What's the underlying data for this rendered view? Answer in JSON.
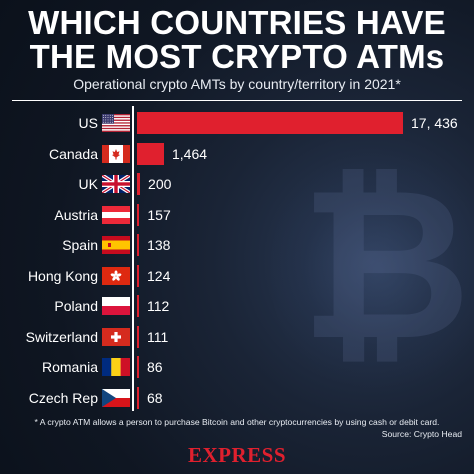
{
  "header": {
    "title_line1": "WHICH COUNTRIES HAVE",
    "title_line2": "THE MOST CRYPTO ATMs",
    "subtitle": "Operational crypto AMTs by country/territory in 2021*"
  },
  "footer": {
    "footnote": "* A crypto ATM allows a person to purchase Bitcoin and other cryptocurrencies by using cash or debit card.",
    "source": "Source: Crypto Head",
    "brand": "EXPRESS"
  },
  "colors": {
    "bar": "#e0202e",
    "background": "#101826",
    "text": "#ffffff"
  },
  "background_glyph": "₿",
  "chart_data": {
    "type": "bar",
    "orientation": "horizontal",
    "title": "WHICH COUNTRIES HAVE THE MOST CRYPTO ATMs",
    "subtitle": "Operational crypto AMTs by country/territory in 2021*",
    "categories": [
      "US",
      "Canada",
      "UK",
      "Austria",
      "Spain",
      "Hong Kong",
      "Poland",
      "Switzerland",
      "Romania",
      "Czech Rep"
    ],
    "values": [
      17436,
      1464,
      200,
      157,
      138,
      124,
      112,
      111,
      86,
      68
    ],
    "value_labels": [
      "17, 436",
      "1,464",
      "200",
      "157",
      "138",
      "124",
      "112",
      "111",
      "86",
      "68"
    ],
    "flags": [
      "us-flag-icon",
      "canada-flag-icon",
      "uk-flag-icon",
      "austria-flag-icon",
      "spain-flag-icon",
      "hong-kong-flag-icon",
      "poland-flag-icon",
      "switzerland-flag-icon",
      "romania-flag-icon",
      "czech-rep-flag-icon"
    ],
    "xlim": [
      0,
      17436
    ],
    "grid": false,
    "legend": "none"
  }
}
